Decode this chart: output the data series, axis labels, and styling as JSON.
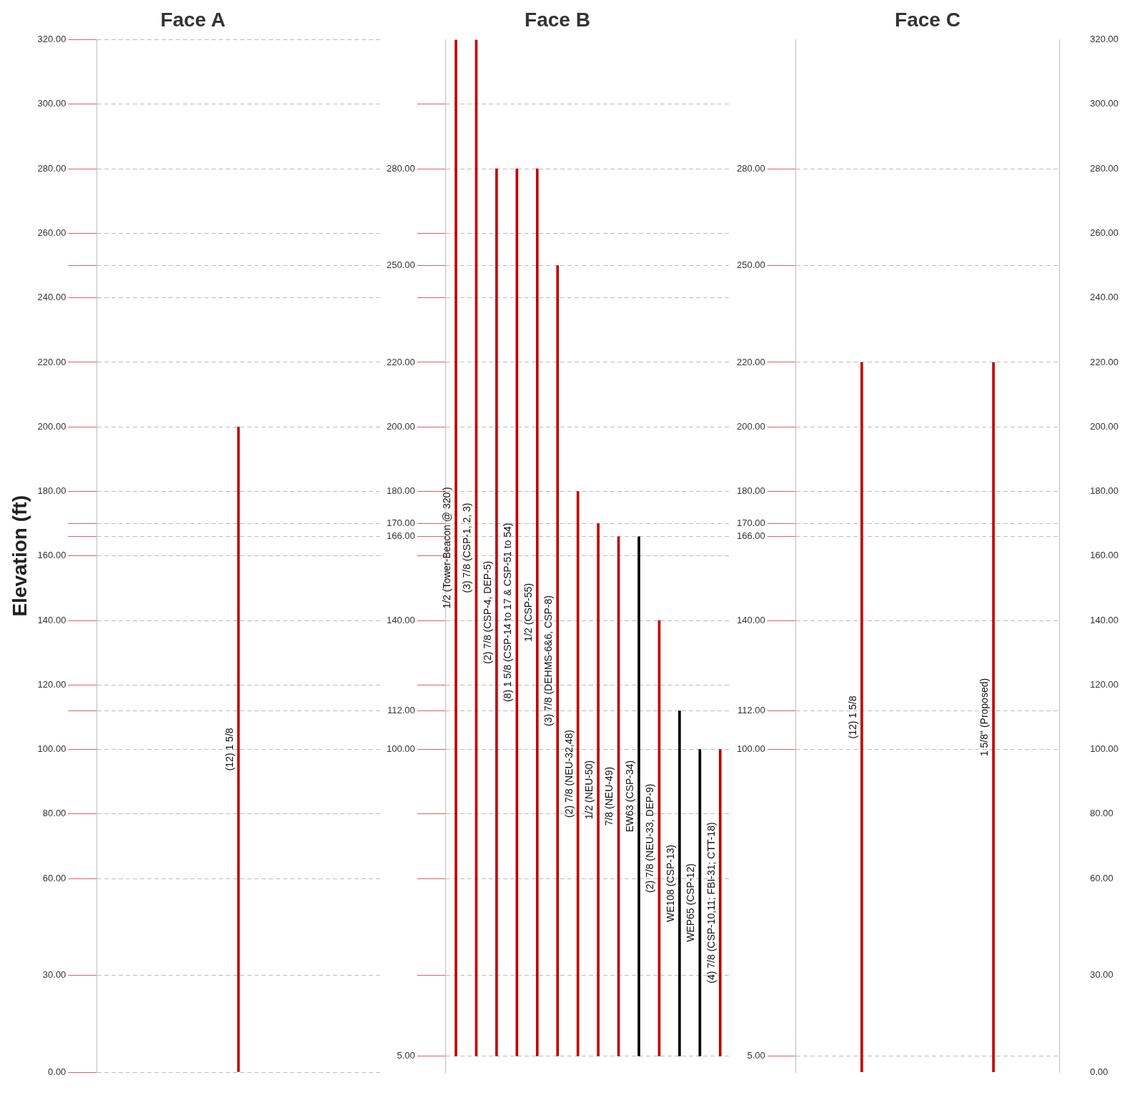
{
  "chart_data": [
    {
      "type": "bar",
      "title": "Face A",
      "ylabel": "Elevation (ft)",
      "categories": [
        "(12) 1 5/8"
      ],
      "values": [
        200
      ],
      "base": [
        0
      ],
      "colors": [
        "#c00000"
      ],
      "ylim": [
        0,
        320
      ],
      "yticks": [
        {
          "value": 0,
          "label": "0.00"
        },
        {
          "value": 30,
          "label": "30.00"
        },
        {
          "value": 60,
          "label": "60.00"
        },
        {
          "value": 80,
          "label": "80.00"
        },
        {
          "value": 100,
          "label": "100.00"
        },
        {
          "value": 112,
          "label": null
        },
        {
          "value": 120,
          "label": "120.00"
        },
        {
          "value": 140,
          "label": "140.00"
        },
        {
          "value": 160,
          "label": "160.00"
        },
        {
          "value": 166,
          "label": null
        },
        {
          "value": 170,
          "label": null
        },
        {
          "value": 180,
          "label": "180.00"
        },
        {
          "value": 200,
          "label": "200.00"
        },
        {
          "value": 220,
          "label": "220.00"
        },
        {
          "value": 240,
          "label": "240.00"
        },
        {
          "value": 250,
          "label": null
        },
        {
          "value": 260,
          "label": "260.00"
        },
        {
          "value": 280,
          "label": "280.00"
        },
        {
          "value": 300,
          "label": "300.00"
        },
        {
          "value": 320,
          "label": "320.00"
        }
      ],
      "grid": "y",
      "tick_labels": "y"
    },
    {
      "type": "bar",
      "title": "Face B",
      "categories": [
        "1/2 (Tower-Beacon @ 320')",
        "(3) 7/8 (CSP-1, 2, 3)",
        "(2) 7/8 (CSP-4, DEP-5)",
        "(8) 1 5/8 (CSP-14 to 17 & CSP-51 to 54)",
        "1/2 (CSP-55)",
        "(3) 7/8 (DEHMS-6&6, CSP-8)",
        "(2) 7/8 (NEU-32,48)",
        "1/2 (NEU-50)",
        "7/8 (NEU-49)",
        "EW63 (CSP-34)",
        "(2) 7/8 (NEU-33, DEP-9)",
        "WE108 (CSP-13)",
        "WEP65 (CSP-12)",
        "(4) 7/8 (CSP-10,11; FBI-31; CTT-18)"
      ],
      "values": [
        315,
        315,
        275,
        275,
        275,
        245,
        175,
        165,
        161,
        161,
        135,
        107,
        95,
        95
      ],
      "base": [
        5,
        5,
        5,
        5,
        5,
        5,
        5,
        5,
        5,
        5,
        5,
        5,
        5,
        5
      ],
      "colors": [
        "#c00000",
        "#c00000",
        "#c00000",
        "#c00000",
        "#c00000",
        "#c00000",
        "#c00000",
        "#c00000",
        "#c00000",
        "#000000",
        "#c00000",
        "#000000",
        "#000000",
        "#c00000"
      ],
      "ylim": [
        0,
        320
      ],
      "yticks": [
        {
          "value": 5,
          "label": "5.00"
        },
        {
          "value": 30,
          "label": null
        },
        {
          "value": 60,
          "label": null
        },
        {
          "value": 80,
          "label": null
        },
        {
          "value": 100,
          "label": "100.00"
        },
        {
          "value": 112,
          "label": "112.00"
        },
        {
          "value": 120,
          "label": null
        },
        {
          "value": 140,
          "label": "140.00"
        },
        {
          "value": 160,
          "label": null
        },
        {
          "value": 166,
          "label": "166.00"
        },
        {
          "value": 170,
          "label": "170.00"
        },
        {
          "value": 180,
          "label": "180.00"
        },
        {
          "value": 200,
          "label": "200.00"
        },
        {
          "value": 220,
          "label": "220.00"
        },
        {
          "value": 240,
          "label": null
        },
        {
          "value": 250,
          "label": "250.00"
        },
        {
          "value": 260,
          "label": null
        },
        {
          "value": 280,
          "label": "280.00"
        },
        {
          "value": 300,
          "label": null
        }
      ],
      "grid": "y",
      "tick_labels": "y"
    },
    {
      "type": "bar",
      "title": "Face C",
      "categories": [
        "(12) 1 5/8",
        "1 5/8\" (Proposed)"
      ],
      "values": [
        220,
        220
      ],
      "base": [
        0,
        0
      ],
      "colors": [
        "#c00000",
        "#c00000"
      ],
      "ylim": [
        0,
        320
      ],
      "yticks": [
        {
          "value": 5,
          "label": "5.00"
        },
        {
          "value": 100,
          "label": "100.00"
        },
        {
          "value": 112,
          "label": "112.00"
        },
        {
          "value": 140,
          "label": "140.00"
        },
        {
          "value": 166,
          "label": "166.00"
        },
        {
          "value": 170,
          "label": "170.00"
        },
        {
          "value": 180,
          "label": "180.00"
        },
        {
          "value": 200,
          "label": "200.00"
        },
        {
          "value": 220,
          "label": "220.00"
        },
        {
          "value": 250,
          "label": "250.00"
        },
        {
          "value": 280,
          "label": "280.00"
        }
      ],
      "y2lim": [
        0,
        320
      ],
      "y2ticks": [
        {
          "value": 0,
          "label": "0.00"
        },
        {
          "value": 30,
          "label": "30.00"
        },
        {
          "value": 60,
          "label": "60.00"
        },
        {
          "value": 80,
          "label": "80.00"
        },
        {
          "value": 100,
          "label": "100.00"
        },
        {
          "value": 120,
          "label": "120.00"
        },
        {
          "value": 140,
          "label": "140.00"
        },
        {
          "value": 160,
          "label": "160.00"
        },
        {
          "value": 180,
          "label": "180.00"
        },
        {
          "value": 200,
          "label": "200.00"
        },
        {
          "value": 220,
          "label": "220.00"
        },
        {
          "value": 240,
          "label": "240.00"
        },
        {
          "value": 260,
          "label": "260.00"
        },
        {
          "value": 280,
          "label": "280.00"
        },
        {
          "value": 300,
          "label": "300.00"
        },
        {
          "value": 320,
          "label": "320.00"
        }
      ],
      "grid": "y",
      "tick_labels": "y"
    }
  ]
}
